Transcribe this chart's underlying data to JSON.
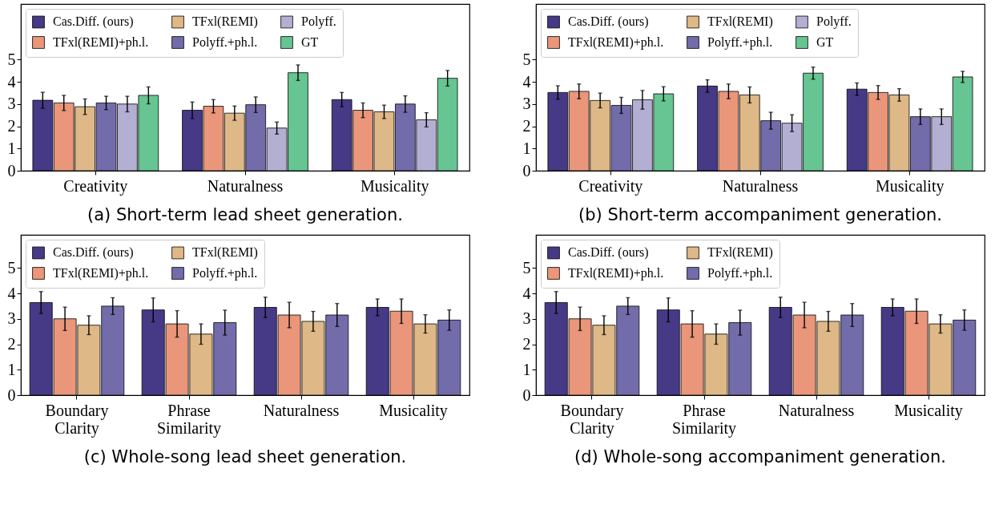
{
  "chart_data": [
    {
      "type": "bar",
      "title": "(a) Short-term lead sheet generation.",
      "categories": [
        "Creativity",
        "Naturalness",
        "Musicality"
      ],
      "ylim": [
        0,
        7.5
      ],
      "yticks": [
        0,
        1,
        2,
        3,
        4,
        5
      ],
      "grid": false,
      "legend": "top",
      "series": [
        {
          "name": "Cas.Diff. (ours)",
          "color": "#463a87",
          "values": [
            3.17,
            2.72,
            3.2
          ],
          "errors": [
            0.36,
            0.37,
            0.32
          ]
        },
        {
          "name": "TFxl(REMI)+ph.l.",
          "color": "#e9967a",
          "values": [
            3.05,
            2.9,
            2.72
          ],
          "errors": [
            0.34,
            0.3,
            0.33
          ]
        },
        {
          "name": "TFxl(REMI)",
          "color": "#deb887",
          "values": [
            2.88,
            2.59,
            2.65
          ],
          "errors": [
            0.35,
            0.32,
            0.3
          ]
        },
        {
          "name": "Polyff.+ph.l.",
          "color": "#736cab",
          "values": [
            3.05,
            2.97,
            3.0
          ],
          "errors": [
            0.3,
            0.35,
            0.37
          ]
        },
        {
          "name": "Polyff.",
          "color": "#b3afd3",
          "values": [
            3.0,
            1.92,
            2.29
          ],
          "errors": [
            0.35,
            0.27,
            0.32
          ]
        },
        {
          "name": "GT",
          "color": "#66c592",
          "values": [
            3.39,
            4.41,
            4.16
          ],
          "errors": [
            0.38,
            0.35,
            0.35
          ]
        }
      ]
    },
    {
      "type": "bar",
      "title": "(b) Short-term accompaniment generation.",
      "categories": [
        "Creativity",
        "Naturalness",
        "Musicality"
      ],
      "ylim": [
        0,
        7.5
      ],
      "yticks": [
        0,
        1,
        2,
        3,
        4,
        5
      ],
      "grid": false,
      "legend": "top",
      "series": [
        {
          "name": "Cas.Diff. (ours)",
          "color": "#463a87",
          "values": [
            3.52,
            3.81,
            3.67
          ],
          "errors": [
            0.3,
            0.28,
            0.28
          ]
        },
        {
          "name": "TFxl(REMI)+ph.l.",
          "color": "#e9967a",
          "values": [
            3.57,
            3.57,
            3.52
          ],
          "errors": [
            0.33,
            0.33,
            0.31
          ]
        },
        {
          "name": "TFxl(REMI)",
          "color": "#deb887",
          "values": [
            3.16,
            3.41,
            3.41
          ],
          "errors": [
            0.33,
            0.36,
            0.28
          ]
        },
        {
          "name": "Polyff.+ph.l.",
          "color": "#736cab",
          "values": [
            2.94,
            2.25,
            2.43
          ],
          "errors": [
            0.36,
            0.38,
            0.35
          ]
        },
        {
          "name": "Polyff.",
          "color": "#b3afd3",
          "values": [
            3.19,
            2.14,
            2.43
          ],
          "errors": [
            0.42,
            0.38,
            0.35
          ]
        },
        {
          "name": "GT",
          "color": "#66c592",
          "values": [
            3.46,
            4.39,
            4.22
          ],
          "errors": [
            0.32,
            0.27,
            0.25
          ]
        }
      ]
    },
    {
      "type": "bar",
      "title": "(c) Whole-song lead sheet generation.",
      "categories": [
        "Boundary Clarity",
        "Phrase Similarity",
        "Naturalness",
        "Musicality"
      ],
      "ylim": [
        0,
        6.3
      ],
      "yticks": [
        0,
        1,
        2,
        3,
        4,
        5
      ],
      "grid": false,
      "legend": "top",
      "series": [
        {
          "name": "Cas.Diff. (ours)",
          "color": "#463a87",
          "values": [
            3.64,
            3.35,
            3.45,
            3.45
          ],
          "errors": [
            0.43,
            0.47,
            0.4,
            0.33
          ]
        },
        {
          "name": "TFxl(REMI)+ph.l.",
          "color": "#e9967a",
          "values": [
            3.0,
            2.8,
            3.15,
            3.3
          ],
          "errors": [
            0.46,
            0.52,
            0.5,
            0.48
          ]
        },
        {
          "name": "TFxl(REMI)",
          "color": "#deb887",
          "values": [
            2.75,
            2.4,
            2.9,
            2.8
          ],
          "errors": [
            0.37,
            0.4,
            0.39,
            0.36
          ]
        },
        {
          "name": "Polyff.+ph.l.",
          "color": "#736cab",
          "values": [
            3.5,
            2.85,
            3.15,
            2.95
          ],
          "errors": [
            0.33,
            0.49,
            0.45,
            0.4
          ]
        }
      ]
    },
    {
      "type": "bar",
      "title": "(d) Whole-song accompaniment generation.",
      "categories": [
        "Boundary Clarity",
        "Phrase Similarity",
        "Naturalness",
        "Musicality"
      ],
      "ylim": [
        0,
        6.3
      ],
      "yticks": [
        0,
        1,
        2,
        3,
        4,
        5
      ],
      "grid": false,
      "legend": "top",
      "series": [
        {
          "name": "Cas.Diff. (ours)",
          "color": "#463a87",
          "values": [
            3.64,
            3.35,
            3.45,
            3.45
          ],
          "errors": [
            0.43,
            0.47,
            0.4,
            0.33
          ]
        },
        {
          "name": "TFxl(REMI)+ph.l.",
          "color": "#e9967a",
          "values": [
            3.0,
            2.8,
            3.15,
            3.3
          ],
          "errors": [
            0.46,
            0.52,
            0.5,
            0.48
          ]
        },
        {
          "name": "TFxl(REMI)",
          "color": "#deb887",
          "values": [
            2.75,
            2.4,
            2.9,
            2.8
          ],
          "errors": [
            0.37,
            0.4,
            0.39,
            0.36
          ]
        },
        {
          "name": "Polyff.+ph.l.",
          "color": "#736cab",
          "values": [
            3.5,
            2.85,
            3.15,
            2.95
          ],
          "errors": [
            0.33,
            0.49,
            0.45,
            0.4
          ]
        }
      ]
    }
  ]
}
